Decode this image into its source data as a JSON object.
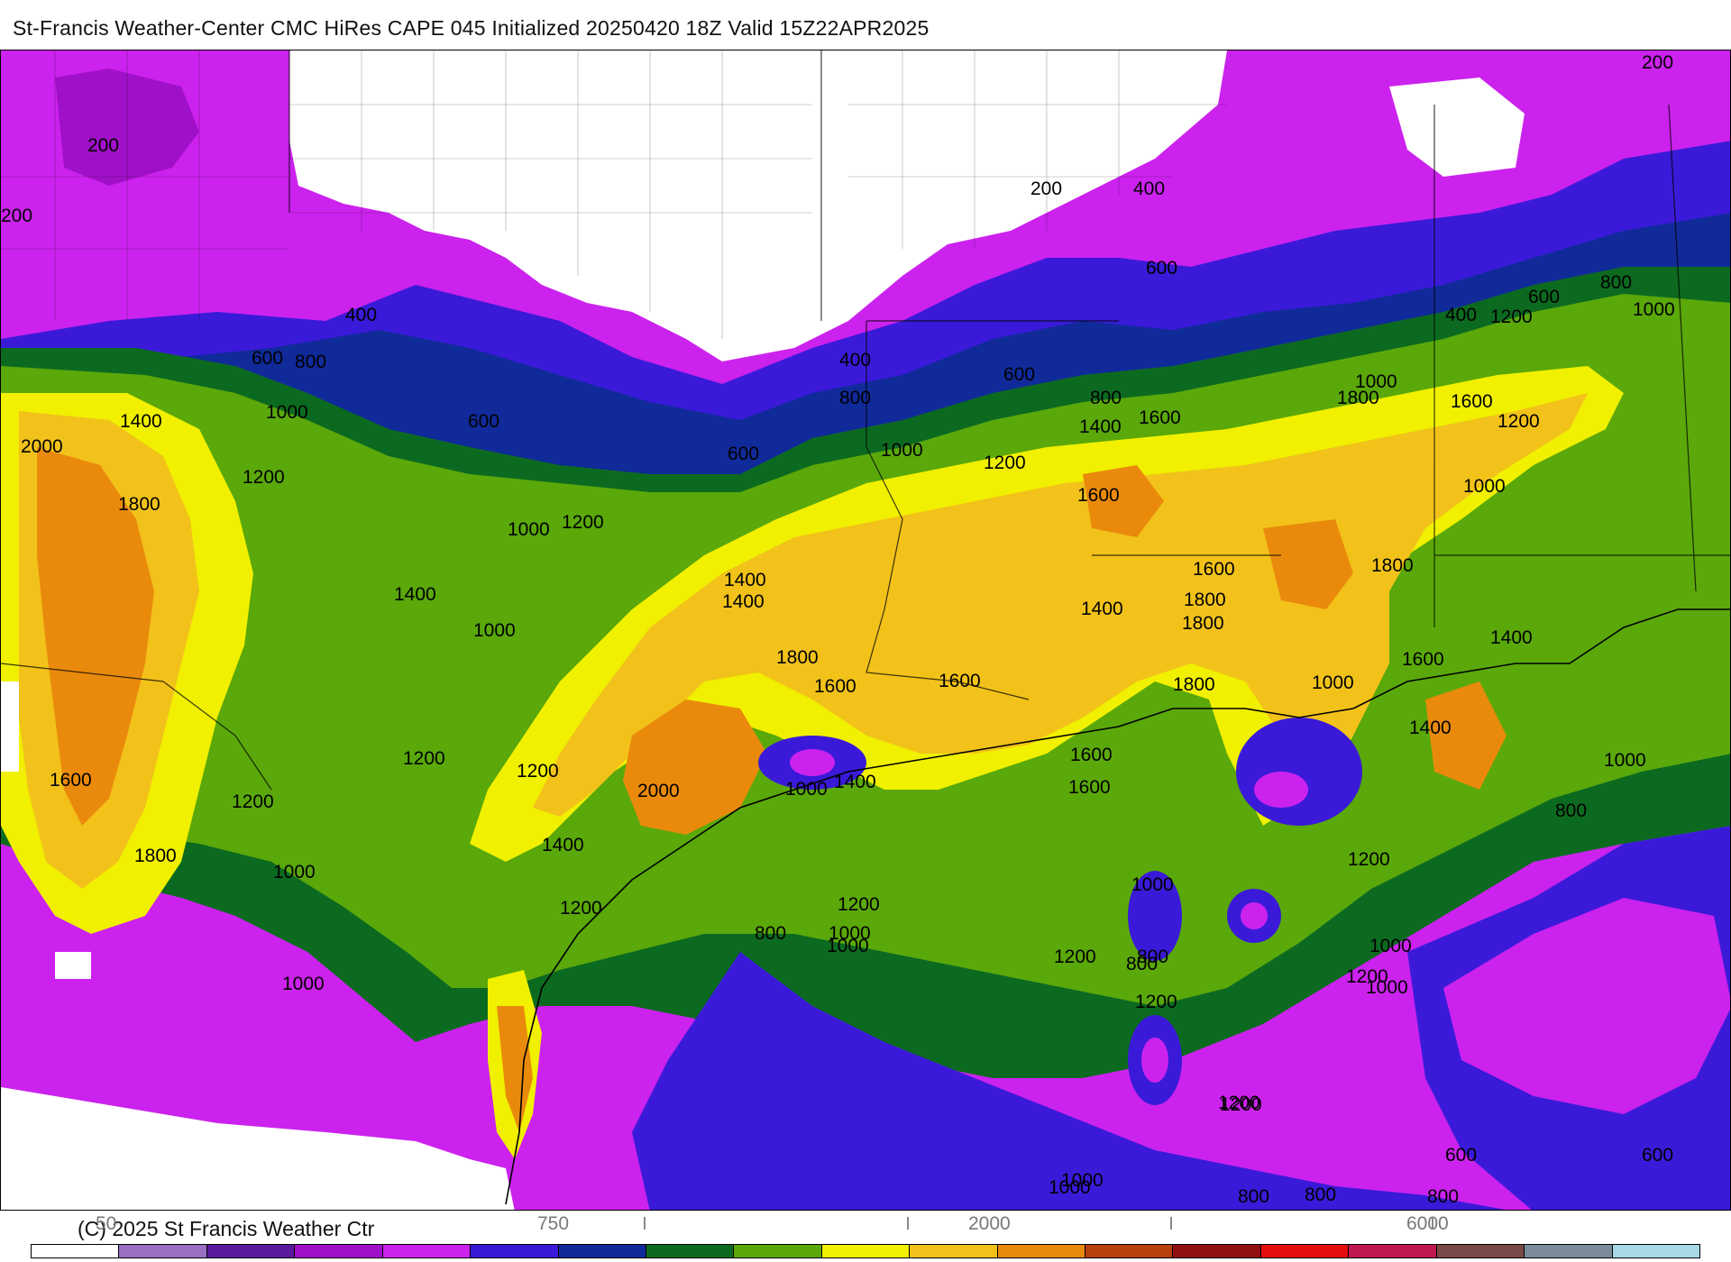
{
  "title": "St-Francis Weather-Center CMC HiRes CAPE  045 Initialized 20250420 18Z Valid 15Z22APR2025",
  "copyright": "(C) 2025 St Francis Weather Ctr",
  "colors": {
    "white": "#ffffff",
    "lavender": "#9a6fc4",
    "dark_purple": "#5b1a9e",
    "magenta": "#c010e6",
    "bright_magenta": "#cc22ee",
    "blue_violet": "#3a1ad8",
    "navy": "#102a9a",
    "dark_green": "#0c6a20",
    "green": "#5aa80a",
    "yellow": "#f0f000",
    "gold": "#f2c21a",
    "orange": "#ea8a0c"
  },
  "colorbar": {
    "swatches": [
      "#ffffff",
      "#9a6fc4",
      "#5b1a9e",
      "#a010c8",
      "#cc22ee",
      "#3a1ad8",
      "#102a9a",
      "#0c6a20",
      "#5aa80a",
      "#f0f000",
      "#f2c21a",
      "#ea8a0c",
      "#b8400a",
      "#901010",
      "#e60e0e",
      "#c01850",
      "#7a4a48",
      "#7a8a9a",
      "#a8d8e6"
    ],
    "tick_labels": [
      "50",
      "750",
      "2000",
      "6000"
    ]
  },
  "contour_labels": [
    {
      "text": "200"
    },
    {
      "text": "200"
    },
    {
      "text": "200"
    },
    {
      "text": "200"
    },
    {
      "text": "400"
    },
    {
      "text": "400"
    },
    {
      "text": "400"
    },
    {
      "text": "400"
    },
    {
      "text": "600"
    },
    {
      "text": "800"
    },
    {
      "text": "600"
    },
    {
      "text": "600"
    },
    {
      "text": "600"
    },
    {
      "text": "600"
    },
    {
      "text": "600"
    },
    {
      "text": "800"
    },
    {
      "text": "800"
    },
    {
      "text": "800"
    },
    {
      "text": "1000"
    },
    {
      "text": "1000"
    },
    {
      "text": "1000"
    },
    {
      "text": "1000"
    },
    {
      "text": "1000"
    },
    {
      "text": "1000"
    },
    {
      "text": "1200"
    },
    {
      "text": "1200"
    },
    {
      "text": "1200"
    },
    {
      "text": "1200"
    },
    {
      "text": "1200"
    },
    {
      "text": "1400"
    },
    {
      "text": "1400"
    },
    {
      "text": "1400"
    },
    {
      "text": "1400"
    },
    {
      "text": "1400"
    },
    {
      "text": "1600"
    },
    {
      "text": "1600"
    },
    {
      "text": "1600"
    },
    {
      "text": "1600"
    },
    {
      "text": "1800"
    },
    {
      "text": "1800"
    },
    {
      "text": "1800"
    },
    {
      "text": "1800"
    },
    {
      "text": "2000"
    },
    {
      "text": "2000"
    },
    {
      "text": "1000"
    },
    {
      "text": "1000"
    },
    {
      "text": "800"
    },
    {
      "text": "1200"
    },
    {
      "text": "1000"
    },
    {
      "text": "800"
    },
    {
      "text": "1000"
    },
    {
      "text": "800"
    },
    {
      "text": "1200"
    },
    {
      "text": "600"
    },
    {
      "text": "800"
    },
    {
      "text": "1000"
    },
    {
      "text": "1200"
    },
    {
      "text": "1400"
    },
    {
      "text": "1600"
    },
    {
      "text": "1800"
    },
    {
      "text": "1600"
    },
    {
      "text": "1400"
    },
    {
      "text": "1000"
    },
    {
      "text": "1200"
    },
    {
      "text": "1200"
    },
    {
      "text": "1400"
    },
    {
      "text": "1600"
    },
    {
      "text": "1400"
    },
    {
      "text": "1600"
    },
    {
      "text": "1800"
    },
    {
      "text": "1800"
    },
    {
      "text": "1600"
    },
    {
      "text": "1200"
    },
    {
      "text": "1000"
    },
    {
      "text": "800"
    },
    {
      "text": "1000"
    },
    {
      "text": "1200"
    },
    {
      "text": "1400"
    },
    {
      "text": "1600"
    },
    {
      "text": "1800"
    },
    {
      "text": "1200"
    },
    {
      "text": "1000"
    },
    {
      "text": "1200"
    },
    {
      "text": "1000"
    },
    {
      "text": "800"
    },
    {
      "text": "1200"
    },
    {
      "text": "1000"
    },
    {
      "text": "800"
    },
    {
      "text": "1000"
    },
    {
      "text": "600"
    },
    {
      "text": "1200"
    },
    {
      "text": "1000"
    }
  ]
}
